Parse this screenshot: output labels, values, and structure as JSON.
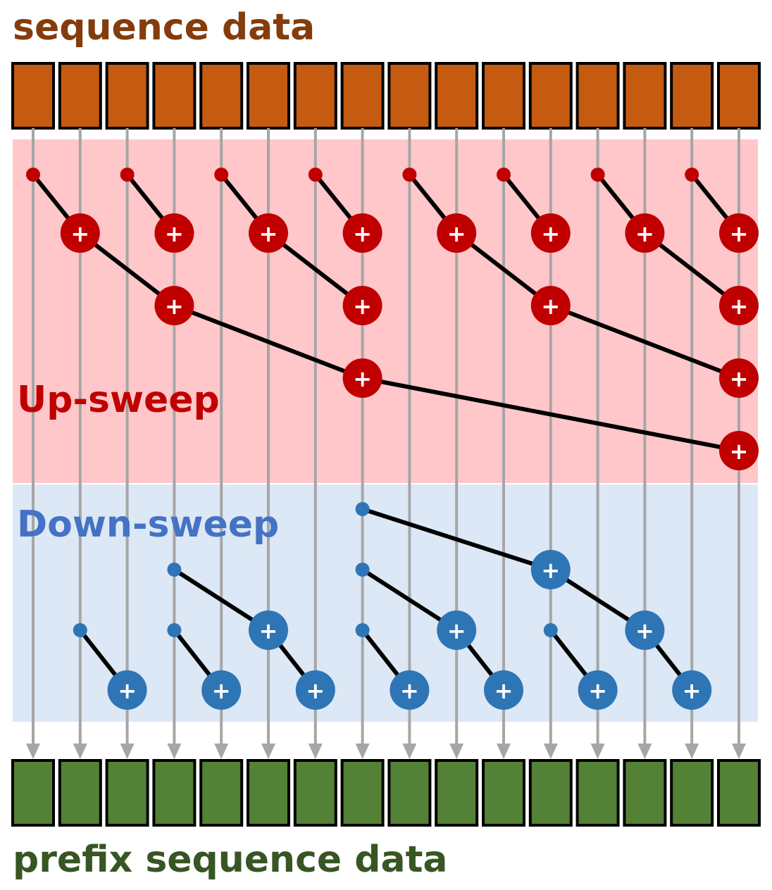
{
  "header": {
    "title": "sequence data"
  },
  "footer": {
    "title": "prefix sequence data"
  },
  "phases": {
    "upsweep": {
      "label": "Up-sweep"
    },
    "downsweep": {
      "label": "Down-sweep"
    }
  },
  "colors": {
    "input_cell": "#c55a11",
    "output_cell": "#538135",
    "header_text": "#843c0c",
    "footer_text": "#375623",
    "upsweep_bg": "#ffc7c9",
    "upsweep_node": "#c00000",
    "downsweep_bg": "#dce8f5",
    "downsweep_node": "#2e75b6",
    "downsweep_text": "#4472c4",
    "lane_line": "#a6a6a6",
    "edge": "#000000"
  },
  "node_symbol": "+",
  "lane_count": 16,
  "upsweep": {
    "levels": [
      {
        "edges": [
          [
            0,
            1
          ],
          [
            2,
            3
          ],
          [
            4,
            5
          ],
          [
            6,
            7
          ],
          [
            8,
            9
          ],
          [
            10,
            11
          ],
          [
            12,
            13
          ],
          [
            14,
            15
          ]
        ]
      },
      {
        "edges": [
          [
            1,
            3
          ],
          [
            5,
            7
          ],
          [
            9,
            11
          ],
          [
            13,
            15
          ]
        ]
      },
      {
        "edges": [
          [
            3,
            7
          ],
          [
            11,
            15
          ]
        ]
      },
      {
        "edges": [
          [
            7,
            15
          ]
        ]
      }
    ]
  },
  "downsweep": {
    "levels": [
      {
        "edges": [
          [
            7,
            11
          ]
        ]
      },
      {
        "edges": [
          [
            3,
            5
          ],
          [
            7,
            9
          ],
          [
            11,
            13
          ]
        ]
      },
      {
        "edges": [
          [
            1,
            2
          ],
          [
            3,
            4
          ],
          [
            5,
            6
          ],
          [
            7,
            8
          ],
          [
            9,
            10
          ],
          [
            11,
            12
          ],
          [
            13,
            14
          ]
        ]
      }
    ]
  }
}
